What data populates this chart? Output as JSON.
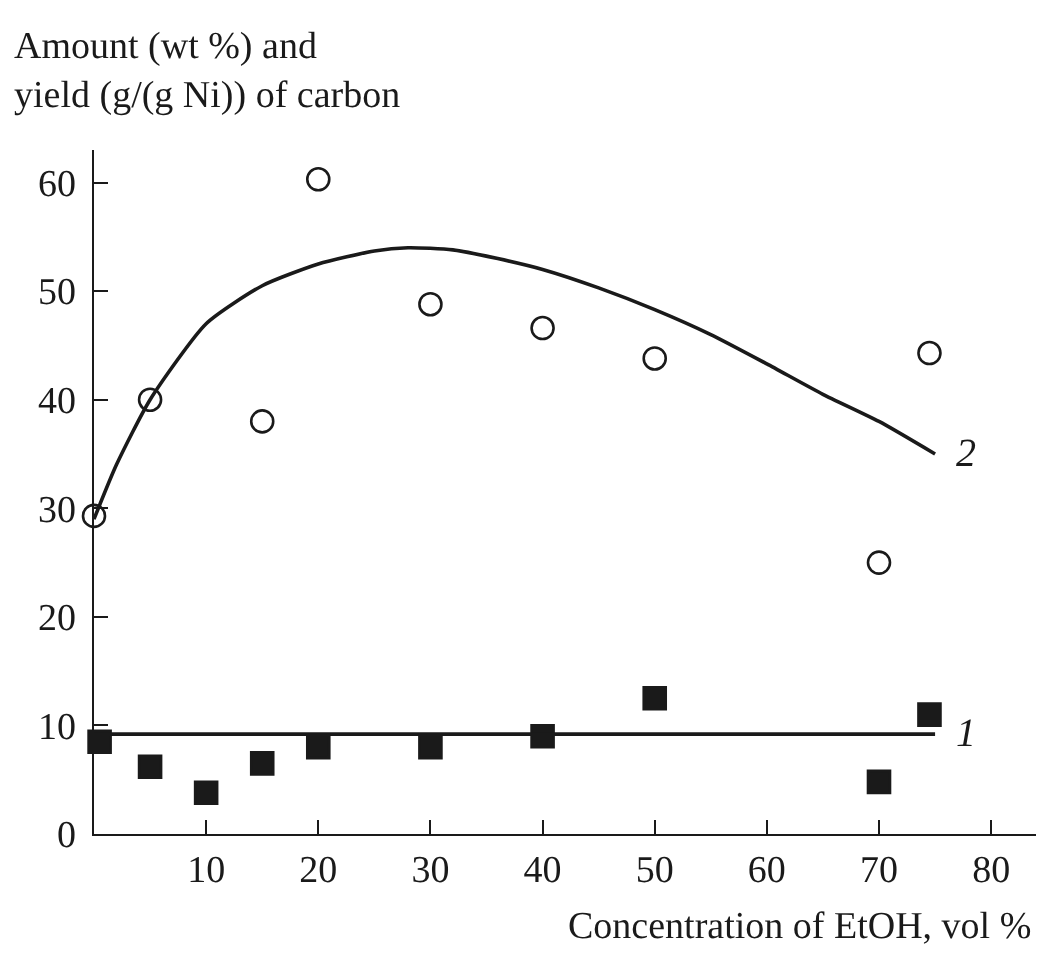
{
  "chart_data": {
    "type": "scatter",
    "ylabel": "Amount (wt %) and\nyield (g/(g Ni)) of carbon",
    "xlabel": "Concentration of EtOH, vol %",
    "xlim": [
      0,
      84
    ],
    "xticks": [
      {
        "value": 0,
        "label": null
      },
      10,
      20,
      30,
      40,
      50,
      60,
      70,
      80
    ],
    "ylim": [
      0,
      63
    ],
    "yticks": [
      0,
      10,
      20,
      30,
      40,
      50,
      60
    ],
    "series": [
      {
        "marker": "square",
        "color": "#1a1a1a",
        "x": [
          0.5,
          5,
          10,
          15,
          20,
          30,
          40,
          50,
          70,
          74.5
        ],
        "values": [
          8.5,
          6.2,
          3.8,
          6.5,
          8,
          8,
          9,
          12.5,
          4.8,
          11
        ]
      },
      {
        "marker": "circle",
        "color": "#ffffff",
        "x": [
          0,
          5,
          15,
          20,
          30,
          40,
          50,
          70,
          74.5
        ],
        "values": [
          29.3,
          40,
          38,
          60.3,
          48.8,
          46.6,
          43.8,
          25,
          44.3
        ]
      },
      {
        "type": "line",
        "name": "1",
        "color": "#1a1a1a",
        "x": [
          0,
          75
        ],
        "values": [
          9.2,
          9.2
        ]
      },
      {
        "type": "line",
        "name": "2",
        "color": "#1a1a1a",
        "x": [
          0,
          2,
          5,
          10,
          15,
          20,
          25,
          28,
          32,
          36,
          40,
          45,
          50,
          55,
          60,
          65,
          70,
          75
        ],
        "values": [
          29,
          34,
          40,
          47,
          50.5,
          52.5,
          53.7,
          54,
          53.8,
          53,
          52,
          50.3,
          48.3,
          46,
          43.3,
          40.5,
          38,
          35
        ]
      }
    ]
  }
}
